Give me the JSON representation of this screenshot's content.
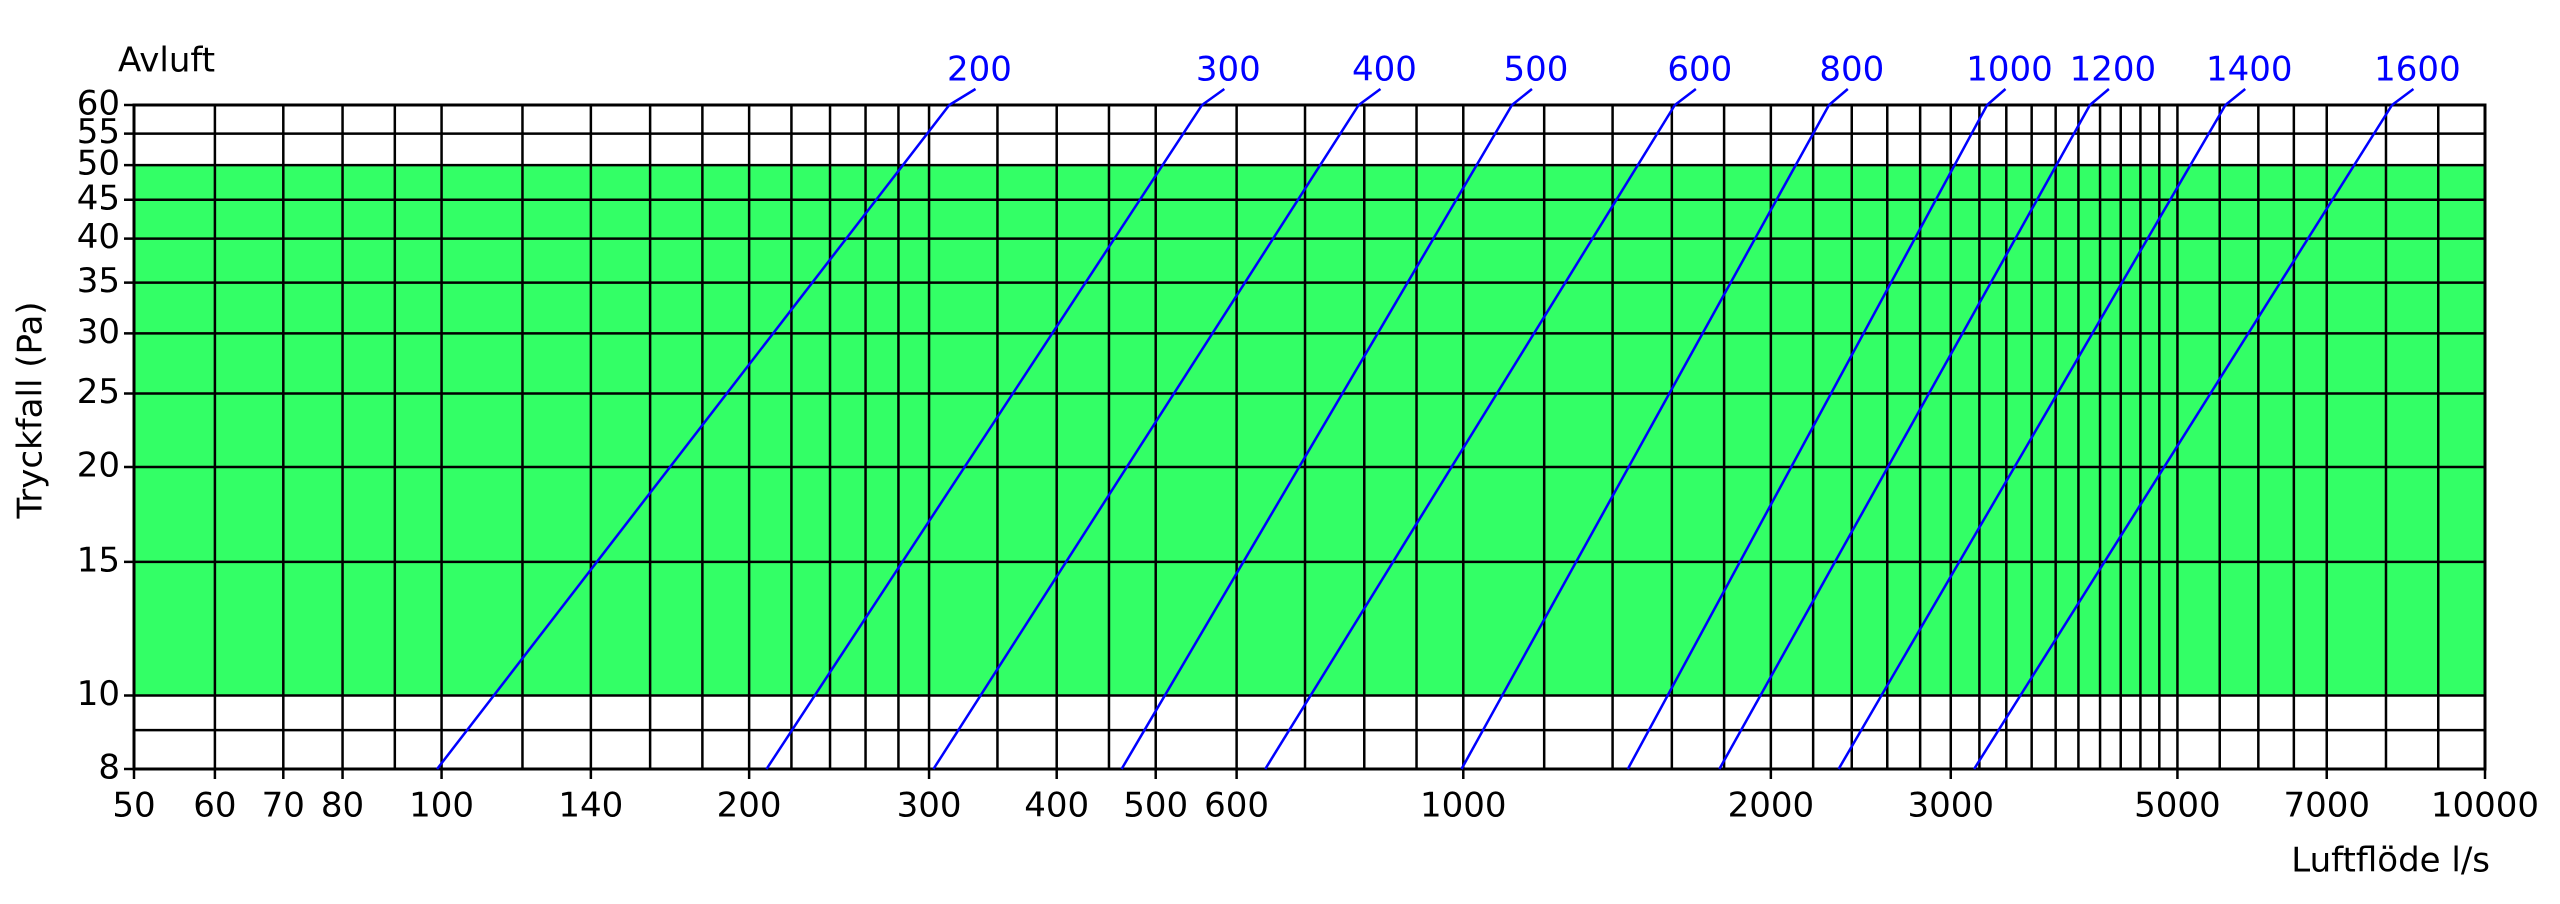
{
  "chart_data": {
    "type": "line",
    "title": "Avluft",
    "x_label": "Luftflöde l/s",
    "y_label": "Tryckfall (Pa)",
    "xscale": "log",
    "yscale": "log",
    "grid": true,
    "xlim": [
      50,
      10000
    ],
    "ylim": [
      8,
      60
    ],
    "xticks": [
      50,
      60,
      70,
      80,
      100,
      140,
      200,
      300,
      400,
      500,
      600,
      1000,
      2000,
      3000,
      5000,
      7000,
      10000
    ],
    "xminor": [
      90,
      120,
      160,
      180,
      220,
      240,
      260,
      280,
      350,
      450,
      700,
      800,
      900,
      1200,
      1400,
      1600,
      1800,
      2200,
      2400,
      2600,
      2800,
      3200,
      3400,
      3600,
      3800,
      4000,
      4200,
      4400,
      4600,
      4800,
      5500,
      6000,
      6500,
      8000,
      9000
    ],
    "yticks": [
      8,
      10,
      15,
      20,
      25,
      30,
      35,
      40,
      45,
      50,
      55,
      60
    ],
    "yminor": [
      9
    ],
    "band": {
      "range": [
        10,
        50
      ],
      "color": "#33ff66"
    },
    "series": [
      {
        "name": "200",
        "color": "#0000ff",
        "x": [
          99,
          314
        ],
        "values": [
          8,
          60
        ]
      },
      {
        "name": "300",
        "color": "#0000ff",
        "x": [
          208,
          555
        ],
        "values": [
          8,
          60
        ]
      },
      {
        "name": "400",
        "color": "#0000ff",
        "x": [
          303,
          790
        ],
        "values": [
          8,
          60
        ]
      },
      {
        "name": "500",
        "color": "#0000ff",
        "x": [
          463,
          1116
        ],
        "values": [
          8,
          60
        ]
      },
      {
        "name": "600",
        "color": "#0000ff",
        "x": [
          640,
          1611
        ],
        "values": [
          8,
          60
        ]
      },
      {
        "name": "800",
        "color": "#0000ff",
        "x": [
          996,
          2280
        ],
        "values": [
          8,
          60
        ]
      },
      {
        "name": "1000",
        "color": "#0000ff",
        "x": [
          1449,
          3256
        ],
        "values": [
          8,
          60
        ]
      },
      {
        "name": "1200",
        "color": "#0000ff",
        "x": [
          1781,
          4105
        ],
        "values": [
          8,
          60
        ]
      },
      {
        "name": "1400",
        "color": "#0000ff",
        "x": [
          2330,
          5571
        ],
        "values": [
          8,
          60
        ]
      },
      {
        "name": "1600",
        "color": "#0000ff",
        "x": [
          3162,
          8110
        ],
        "values": [
          8,
          60
        ]
      }
    ]
  }
}
